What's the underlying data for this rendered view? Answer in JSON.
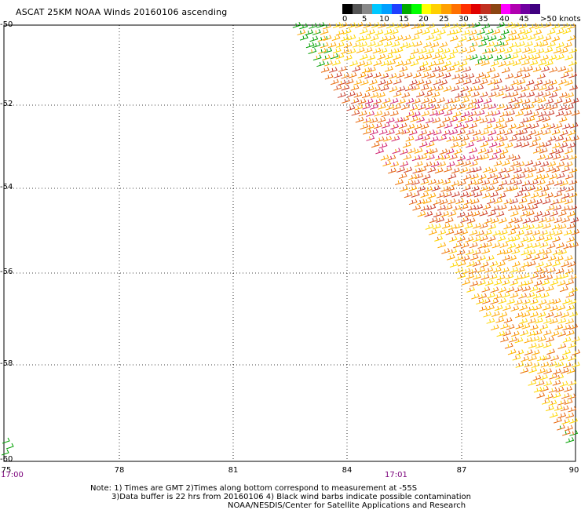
{
  "title": "ASCAT 25KM NOAA Winds 20160106 ascending",
  "legend": {
    "colors": [
      "#000000",
      "#555555",
      "#888888",
      "#00c8ff",
      "#00a0ff",
      "#2040ff",
      "#00aa00",
      "#00ff00",
      "#ffff00",
      "#ffd000",
      "#ffa000",
      "#ff7000",
      "#ff3000",
      "#e00000",
      "#c03020",
      "#8b4513",
      "#ff00ff",
      "#b000b0",
      "#7000a0",
      "#400080"
    ],
    "labels": [
      "0",
      "5",
      "10",
      "15",
      "20",
      "25",
      "30",
      "35",
      "40",
      "45",
      ">50 knots"
    ]
  },
  "lat_labels": [
    "-50",
    "-52",
    "-54",
    "-56",
    "-58",
    "-60"
  ],
  "lon_labels": [
    "75",
    "78",
    "81",
    "84",
    "87",
    "90"
  ],
  "times": [
    "17:00",
    "17:01"
  ],
  "notes": [
    "Note: 1) Times are GMT 2)Times along bottom correspond to measurement at -55S",
    "3)Data buffer is 22 hrs from 20160106 4) Black wind barbs indicate possible contamination",
    "NOAA/NESDIS/Center for Satellite Applications and Research"
  ],
  "colors": {
    "speed_20_25": "#ffd700",
    "speed_25_30": "#ffa500",
    "speed_30_35": "#e86a10",
    "speed_35_40": "#c83a2a",
    "speed_40_45": "#d02070",
    "speed_15_20": "#00a000"
  }
}
